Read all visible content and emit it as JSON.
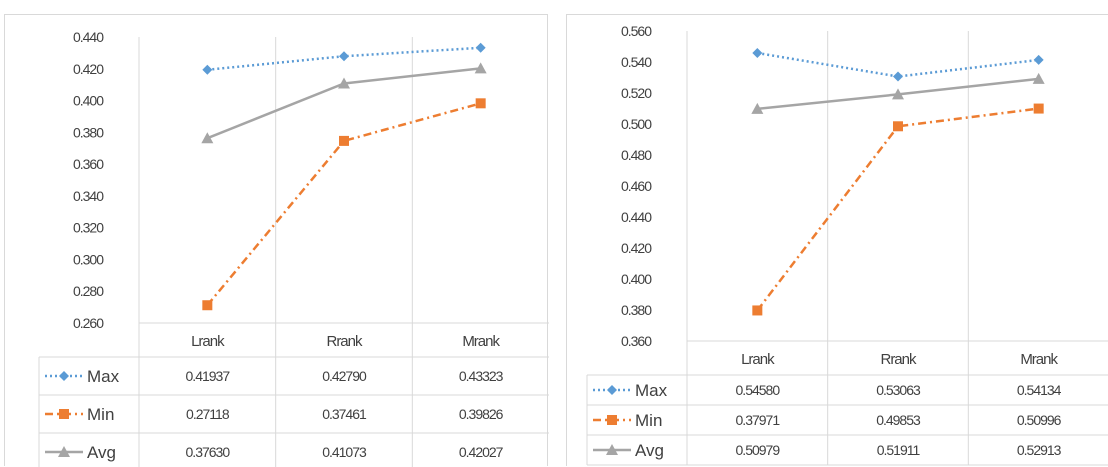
{
  "chart_data": [
    {
      "type": "line",
      "categories": [
        "Lrank",
        "Rrank",
        "Mrank"
      ],
      "ylim": [
        0.26,
        0.44
      ],
      "y_ticks": [
        "0.440",
        "0.420",
        "0.400",
        "0.380",
        "0.360",
        "0.340",
        "0.320",
        "0.300",
        "0.280",
        "0.260"
      ],
      "grid": "vertical",
      "legend": "data-table",
      "series": [
        {
          "name": "Max",
          "values": [
            0.41937,
            0.4279,
            0.43323
          ],
          "labels": [
            "0.41937",
            "0.42790",
            "0.43323"
          ],
          "color": "#5b9bd5",
          "marker": "diamond",
          "dash": "dotted"
        },
        {
          "name": "Min",
          "values": [
            0.27118,
            0.37461,
            0.39826
          ],
          "labels": [
            "0.27118",
            "0.37461",
            "0.39826"
          ],
          "color": "#ed7d31",
          "marker": "square",
          "dash": "dashdot"
        },
        {
          "name": "Avg",
          "values": [
            0.3763,
            0.41073,
            0.42027
          ],
          "labels": [
            "0.37630",
            "0.41073",
            "0.42027"
          ],
          "color": "#a5a5a5",
          "marker": "triangle",
          "dash": "solid"
        }
      ]
    },
    {
      "type": "line",
      "categories": [
        "Lrank",
        "Rrank",
        "Mrank"
      ],
      "ylim": [
        0.36,
        0.56
      ],
      "y_ticks": [
        "0.560",
        "0.540",
        "0.520",
        "0.500",
        "0.480",
        "0.460",
        "0.440",
        "0.420",
        "0.400",
        "0.380",
        "0.360"
      ],
      "grid": "vertical",
      "legend": "data-table",
      "series": [
        {
          "name": "Max",
          "values": [
            0.5458,
            0.53063,
            0.54134
          ],
          "labels": [
            "0.54580",
            "0.53063",
            "0.54134"
          ],
          "color": "#5b9bd5",
          "marker": "diamond",
          "dash": "dotted"
        },
        {
          "name": "Min",
          "values": [
            0.37971,
            0.49853,
            0.50996
          ],
          "labels": [
            "0.37971",
            "0.49853",
            "0.50996"
          ],
          "color": "#ed7d31",
          "marker": "square",
          "dash": "dashdot"
        },
        {
          "name": "Avg",
          "values": [
            0.50979,
            0.51911,
            0.52913
          ],
          "labels": [
            "0.50979",
            "0.51911",
            "0.52913"
          ],
          "color": "#a5a5a5",
          "marker": "triangle",
          "dash": "solid"
        }
      ]
    }
  ]
}
